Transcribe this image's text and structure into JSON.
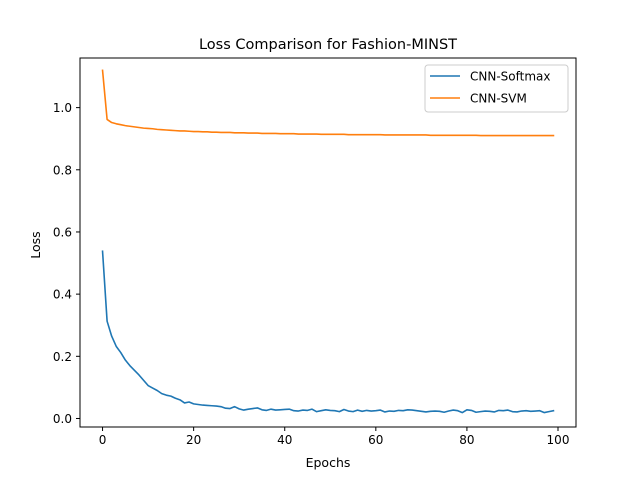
{
  "chart_data": {
    "type": "line",
    "title": "Loss Comparison for Fashion-MINST",
    "xlabel": "Epochs",
    "ylabel": "Loss",
    "xlim": [
      -4.95,
      103.95
    ],
    "ylim": [
      -0.0274,
      1.1596
    ],
    "xticks": [
      0,
      20,
      40,
      60,
      80,
      100
    ],
    "xtick_labels": [
      "0",
      "20",
      "40",
      "60",
      "80",
      "100"
    ],
    "yticks": [
      0.0,
      0.2,
      0.4,
      0.6,
      0.8,
      1.0
    ],
    "ytick_labels": [
      "0.0",
      "0.2",
      "0.4",
      "0.6",
      "0.8",
      "1.0"
    ],
    "grid": false,
    "legend": "upper right",
    "series": [
      {
        "name": "CNN-Softmax",
        "color": "#1f77b4",
        "x": [
          0,
          1,
          2,
          3,
          4,
          5,
          6,
          7,
          8,
          9,
          10,
          11,
          12,
          13,
          14,
          15,
          16,
          17,
          18,
          19,
          20,
          21,
          22,
          23,
          24,
          25,
          26,
          27,
          28,
          29,
          30,
          31,
          32,
          33,
          34,
          35,
          36,
          37,
          38,
          39,
          40,
          41,
          42,
          43,
          44,
          45,
          46,
          47,
          48,
          49,
          50,
          51,
          52,
          53,
          54,
          55,
          56,
          57,
          58,
          59,
          60,
          61,
          62,
          63,
          64,
          65,
          66,
          67,
          68,
          69,
          70,
          71,
          72,
          73,
          74,
          75,
          76,
          77,
          78,
          79,
          80,
          81,
          82,
          83,
          84,
          85,
          86,
          87,
          88,
          89,
          90,
          91,
          92,
          93,
          94,
          95,
          96,
          97,
          98,
          99
        ],
        "values": [
          0.538,
          0.313,
          0.265,
          0.232,
          0.212,
          0.188,
          0.17,
          0.155,
          0.14,
          0.123,
          0.106,
          0.098,
          0.09,
          0.08,
          0.075,
          0.072,
          0.065,
          0.06,
          0.05,
          0.053,
          0.047,
          0.045,
          0.043,
          0.042,
          0.041,
          0.04,
          0.038,
          0.033,
          0.032,
          0.038,
          0.031,
          0.027,
          0.03,
          0.032,
          0.034,
          0.028,
          0.026,
          0.03,
          0.027,
          0.028,
          0.029,
          0.03,
          0.025,
          0.024,
          0.027,
          0.026,
          0.03,
          0.022,
          0.025,
          0.028,
          0.026,
          0.025,
          0.022,
          0.029,
          0.024,
          0.022,
          0.027,
          0.023,
          0.026,
          0.024,
          0.025,
          0.027,
          0.021,
          0.024,
          0.023,
          0.026,
          0.025,
          0.028,
          0.027,
          0.025,
          0.023,
          0.021,
          0.023,
          0.024,
          0.023,
          0.02,
          0.024,
          0.027,
          0.025,
          0.019,
          0.028,
          0.026,
          0.02,
          0.022,
          0.024,
          0.023,
          0.021,
          0.026,
          0.025,
          0.027,
          0.022,
          0.021,
          0.024,
          0.025,
          0.023,
          0.024,
          0.025,
          0.019,
          0.022,
          0.025
        ]
      },
      {
        "name": "CNN-SVM",
        "color": "#ff7f0e",
        "x": [
          0,
          1,
          2,
          3,
          4,
          5,
          6,
          7,
          8,
          9,
          10,
          11,
          12,
          13,
          14,
          15,
          16,
          17,
          18,
          19,
          20,
          21,
          22,
          23,
          24,
          25,
          26,
          27,
          28,
          29,
          30,
          31,
          32,
          33,
          34,
          35,
          36,
          37,
          38,
          39,
          40,
          41,
          42,
          43,
          44,
          45,
          46,
          47,
          48,
          49,
          50,
          51,
          52,
          53,
          54,
          55,
          56,
          57,
          58,
          59,
          60,
          61,
          62,
          63,
          64,
          65,
          66,
          67,
          68,
          69,
          70,
          71,
          72,
          73,
          74,
          75,
          76,
          77,
          78,
          79,
          80,
          81,
          82,
          83,
          84,
          85,
          86,
          87,
          88,
          89,
          90,
          91,
          92,
          93,
          94,
          95,
          96,
          97,
          98,
          99
        ],
        "values": [
          1.12,
          0.962,
          0.952,
          0.948,
          0.945,
          0.942,
          0.94,
          0.938,
          0.936,
          0.934,
          0.933,
          0.932,
          0.93,
          0.929,
          0.928,
          0.927,
          0.926,
          0.925,
          0.925,
          0.924,
          0.923,
          0.923,
          0.922,
          0.922,
          0.921,
          0.921,
          0.92,
          0.92,
          0.92,
          0.919,
          0.919,
          0.919,
          0.918,
          0.918,
          0.918,
          0.917,
          0.917,
          0.917,
          0.917,
          0.916,
          0.916,
          0.916,
          0.916,
          0.915,
          0.915,
          0.915,
          0.915,
          0.915,
          0.914,
          0.914,
          0.914,
          0.914,
          0.914,
          0.914,
          0.913,
          0.913,
          0.913,
          0.913,
          0.913,
          0.913,
          0.913,
          0.913,
          0.912,
          0.912,
          0.912,
          0.912,
          0.912,
          0.912,
          0.912,
          0.912,
          0.912,
          0.912,
          0.911,
          0.911,
          0.911,
          0.911,
          0.911,
          0.911,
          0.911,
          0.911,
          0.911,
          0.911,
          0.911,
          0.91,
          0.91,
          0.91,
          0.91,
          0.91,
          0.91,
          0.91,
          0.91,
          0.91,
          0.91,
          0.91,
          0.91,
          0.91,
          0.91,
          0.91,
          0.91,
          0.91
        ]
      }
    ]
  }
}
